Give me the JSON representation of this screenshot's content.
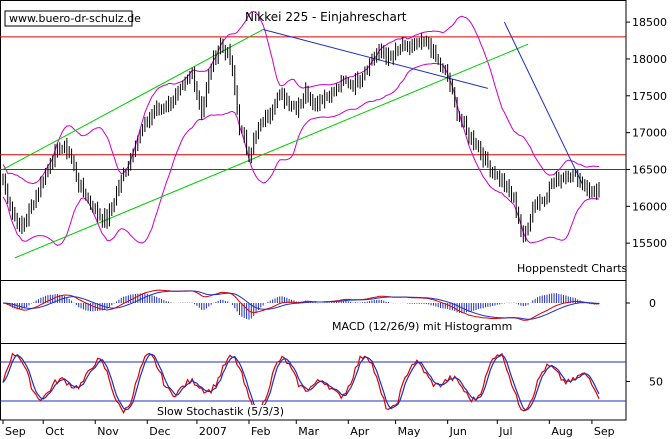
{
  "chart_data": {
    "type": "line",
    "title": "Nikkei 225 - Einjahreschart",
    "watermark": "www.buero-dr-schulz.de",
    "source": "Hoppenstedt Charts",
    "colors": {
      "price": "#000000",
      "bollinger": "#cc00cc",
      "trend": "#00cc00",
      "trend_down": "#1f2fbf",
      "resistance": "#dd0000",
      "macd_hist": "#1f2fbf",
      "macd_line": "#dd0000",
      "stoch_k": "#dd0000",
      "stoch_d": "#1f2fbf",
      "stoch_band": "#1f2fbf"
    },
    "x_tick_labels": [
      "Sep",
      "Oct",
      "Nov",
      "Dec",
      "2007",
      "Feb",
      "Mar",
      "Apr",
      "May",
      "Jun",
      "Jul",
      "Aug",
      "Sep"
    ],
    "price_panel": {
      "ylim": [
        15000,
        18800
      ],
      "y_ticks": [
        15500,
        16000,
        16500,
        17000,
        17500,
        18000,
        18500
      ],
      "y_tick_labels": [
        "15500",
        "16000",
        "16500",
        "17000",
        "17500",
        "18000",
        "18500"
      ],
      "horizontal_lines": [
        18300,
        16700,
        16500
      ],
      "close_series": {
        "x": [
          0,
          4,
          8,
          12,
          16,
          20,
          24,
          28,
          32,
          36,
          40,
          44,
          48,
          52,
          56,
          60,
          64,
          68,
          72,
          76,
          80,
          84,
          88,
          92,
          96,
          100,
          104,
          108,
          112,
          116,
          120,
          124,
          128,
          132,
          136,
          140,
          144,
          148,
          152,
          156,
          160,
          164,
          168,
          172,
          176,
          180,
          184,
          188,
          192,
          196,
          200,
          204,
          208,
          212,
          216,
          220,
          224,
          228,
          232,
          236,
          240,
          244,
          248,
          252
        ],
        "y": [
          16350,
          15900,
          15700,
          16000,
          16300,
          16600,
          16800,
          16750,
          16300,
          16100,
          15900,
          15800,
          16200,
          16500,
          16850,
          17100,
          17300,
          17350,
          17450,
          17600,
          17800,
          17300,
          17900,
          18200,
          18000,
          17100,
          16700,
          17050,
          17250,
          17500,
          17450,
          17350,
          17550,
          17400,
          17500,
          17550,
          17700,
          17650,
          17800,
          18000,
          18100,
          18000,
          18150,
          18150,
          18200,
          18200,
          17950,
          17750,
          17300,
          17000,
          16850,
          16600,
          16450,
          16300,
          16100,
          15550,
          16000,
          16100,
          16300,
          16400,
          16450,
          16350,
          16200,
          16200
        ]
      }
    },
    "macd_panel": {
      "label": "MACD (12/26/9) mit Histogramm",
      "y_ticks": [
        0
      ],
      "y_tick_labels": [
        "0"
      ]
    },
    "stochastic_panel": {
      "label": "Slow Stochastik (5/3/3)",
      "ylim": [
        0,
        100
      ],
      "y_ticks": [
        50
      ],
      "y_tick_labels": [
        "50"
      ],
      "bands": [
        80,
        20
      ]
    }
  }
}
